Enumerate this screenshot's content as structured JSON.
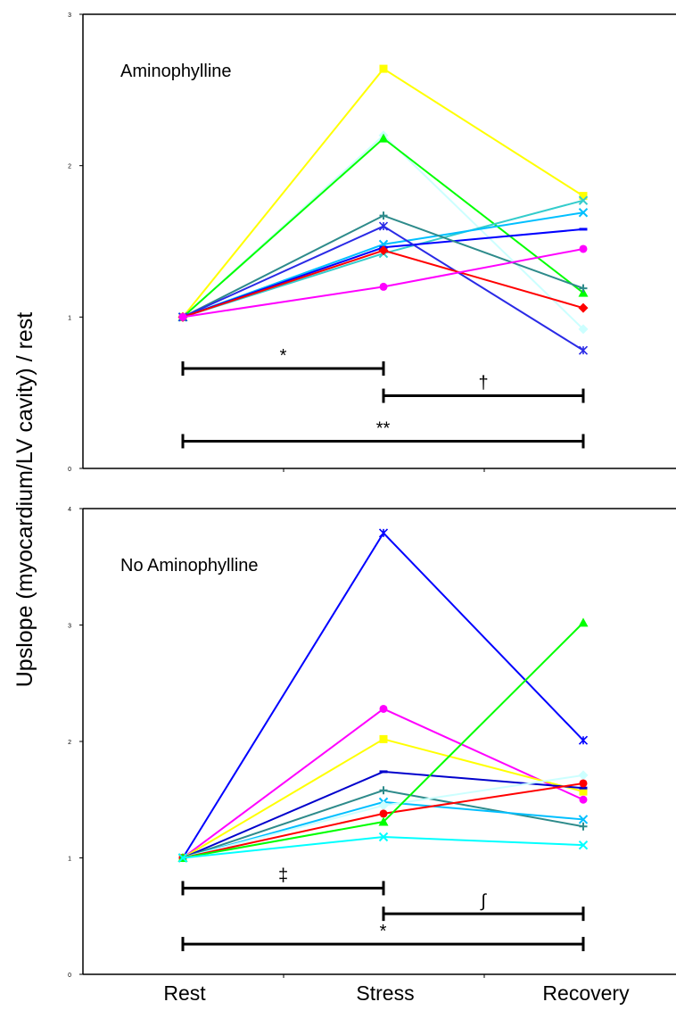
{
  "chart_data": [
    {
      "type": "line",
      "panel_label": "Aminophylline",
      "categories": [
        "Rest",
        "Stress",
        "Recovery"
      ],
      "ylabel": "Upslope (myocardium/LV cavity) / rest",
      "ylim": [
        0,
        3
      ],
      "yticks": [
        "0",
        "1",
        "2",
        "3"
      ],
      "grid": false,
      "series": [
        {
          "color": "#ffff00",
          "marker": "square",
          "values": [
            1,
            2.64,
            1.8
          ]
        },
        {
          "color": "#ccffff",
          "marker": "diamond",
          "values": [
            1,
            2.2,
            0.92
          ]
        },
        {
          "color": "#00ff00",
          "marker": "triangle",
          "values": [
            1,
            2.18,
            1.16
          ]
        },
        {
          "color": "#33cccc",
          "marker": "cross",
          "values": [
            1,
            1.42,
            1.77
          ]
        },
        {
          "color": "#00bfff",
          "marker": "cross",
          "values": [
            1,
            1.48,
            1.69
          ]
        },
        {
          "color": "#0000ff",
          "marker": "dash",
          "values": [
            1,
            1.46,
            1.58
          ]
        },
        {
          "color": "#2e8b8b",
          "marker": "plus",
          "values": [
            1,
            1.67,
            1.19
          ]
        },
        {
          "color": "#2a2ae6",
          "marker": "asterisk",
          "values": [
            1,
            1.6,
            0.78
          ]
        },
        {
          "color": "#ff0000",
          "marker": "diamond",
          "values": [
            1,
            1.44,
            1.06
          ]
        },
        {
          "color": "#ff00ff",
          "marker": "circle",
          "values": [
            1,
            1.2,
            1.45
          ]
        }
      ],
      "significance": [
        {
          "from": "Rest",
          "to": "Stress",
          "label": "*",
          "y": 0.66
        },
        {
          "from": "Stress",
          "to": "Recovery",
          "label": "†",
          "y": 0.48
        },
        {
          "from": "Rest",
          "to": "Recovery",
          "label": "**",
          "y": 0.18
        }
      ]
    },
    {
      "type": "line",
      "panel_label": "No Aminophylline",
      "categories": [
        "Rest",
        "Stress",
        "Recovery"
      ],
      "ylim": [
        0,
        4
      ],
      "yticks": [
        "0",
        "1",
        "2",
        "3",
        "4"
      ],
      "grid": false,
      "series": [
        {
          "color": "#0000ff",
          "marker": "asterisk",
          "values": [
            1,
            3.79,
            2.01
          ]
        },
        {
          "color": "#ff00ff",
          "marker": "circle",
          "values": [
            1,
            2.28,
            1.5
          ]
        },
        {
          "color": "#ffff00",
          "marker": "square",
          "values": [
            1,
            2.02,
            1.57
          ]
        },
        {
          "color": "#0000cc",
          "marker": "dash",
          "values": [
            1,
            1.74,
            1.6
          ]
        },
        {
          "color": "#2e8b8b",
          "marker": "plus",
          "values": [
            1,
            1.58,
            1.27
          ]
        },
        {
          "color": "#00bfff",
          "marker": "cross",
          "values": [
            1,
            1.48,
            1.33
          ]
        },
        {
          "color": "#ccffff",
          "marker": "diamond",
          "values": [
            1,
            1.45,
            1.71
          ]
        },
        {
          "color": "#ff0000",
          "marker": "circle",
          "values": [
            1,
            1.38,
            1.64
          ]
        },
        {
          "color": "#00ff00",
          "marker": "triangle",
          "values": [
            1,
            1.31,
            3.02
          ]
        },
        {
          "color": "#00ffff",
          "marker": "cross",
          "values": [
            1,
            1.18,
            1.11
          ]
        }
      ],
      "significance": [
        {
          "from": "Rest",
          "to": "Stress",
          "label": "‡",
          "y": 0.74
        },
        {
          "from": "Stress",
          "to": "Recovery",
          "label": "∫",
          "y": 0.52
        },
        {
          "from": "Rest",
          "to": "Recovery",
          "label": "*",
          "y": 0.26
        }
      ]
    }
  ]
}
